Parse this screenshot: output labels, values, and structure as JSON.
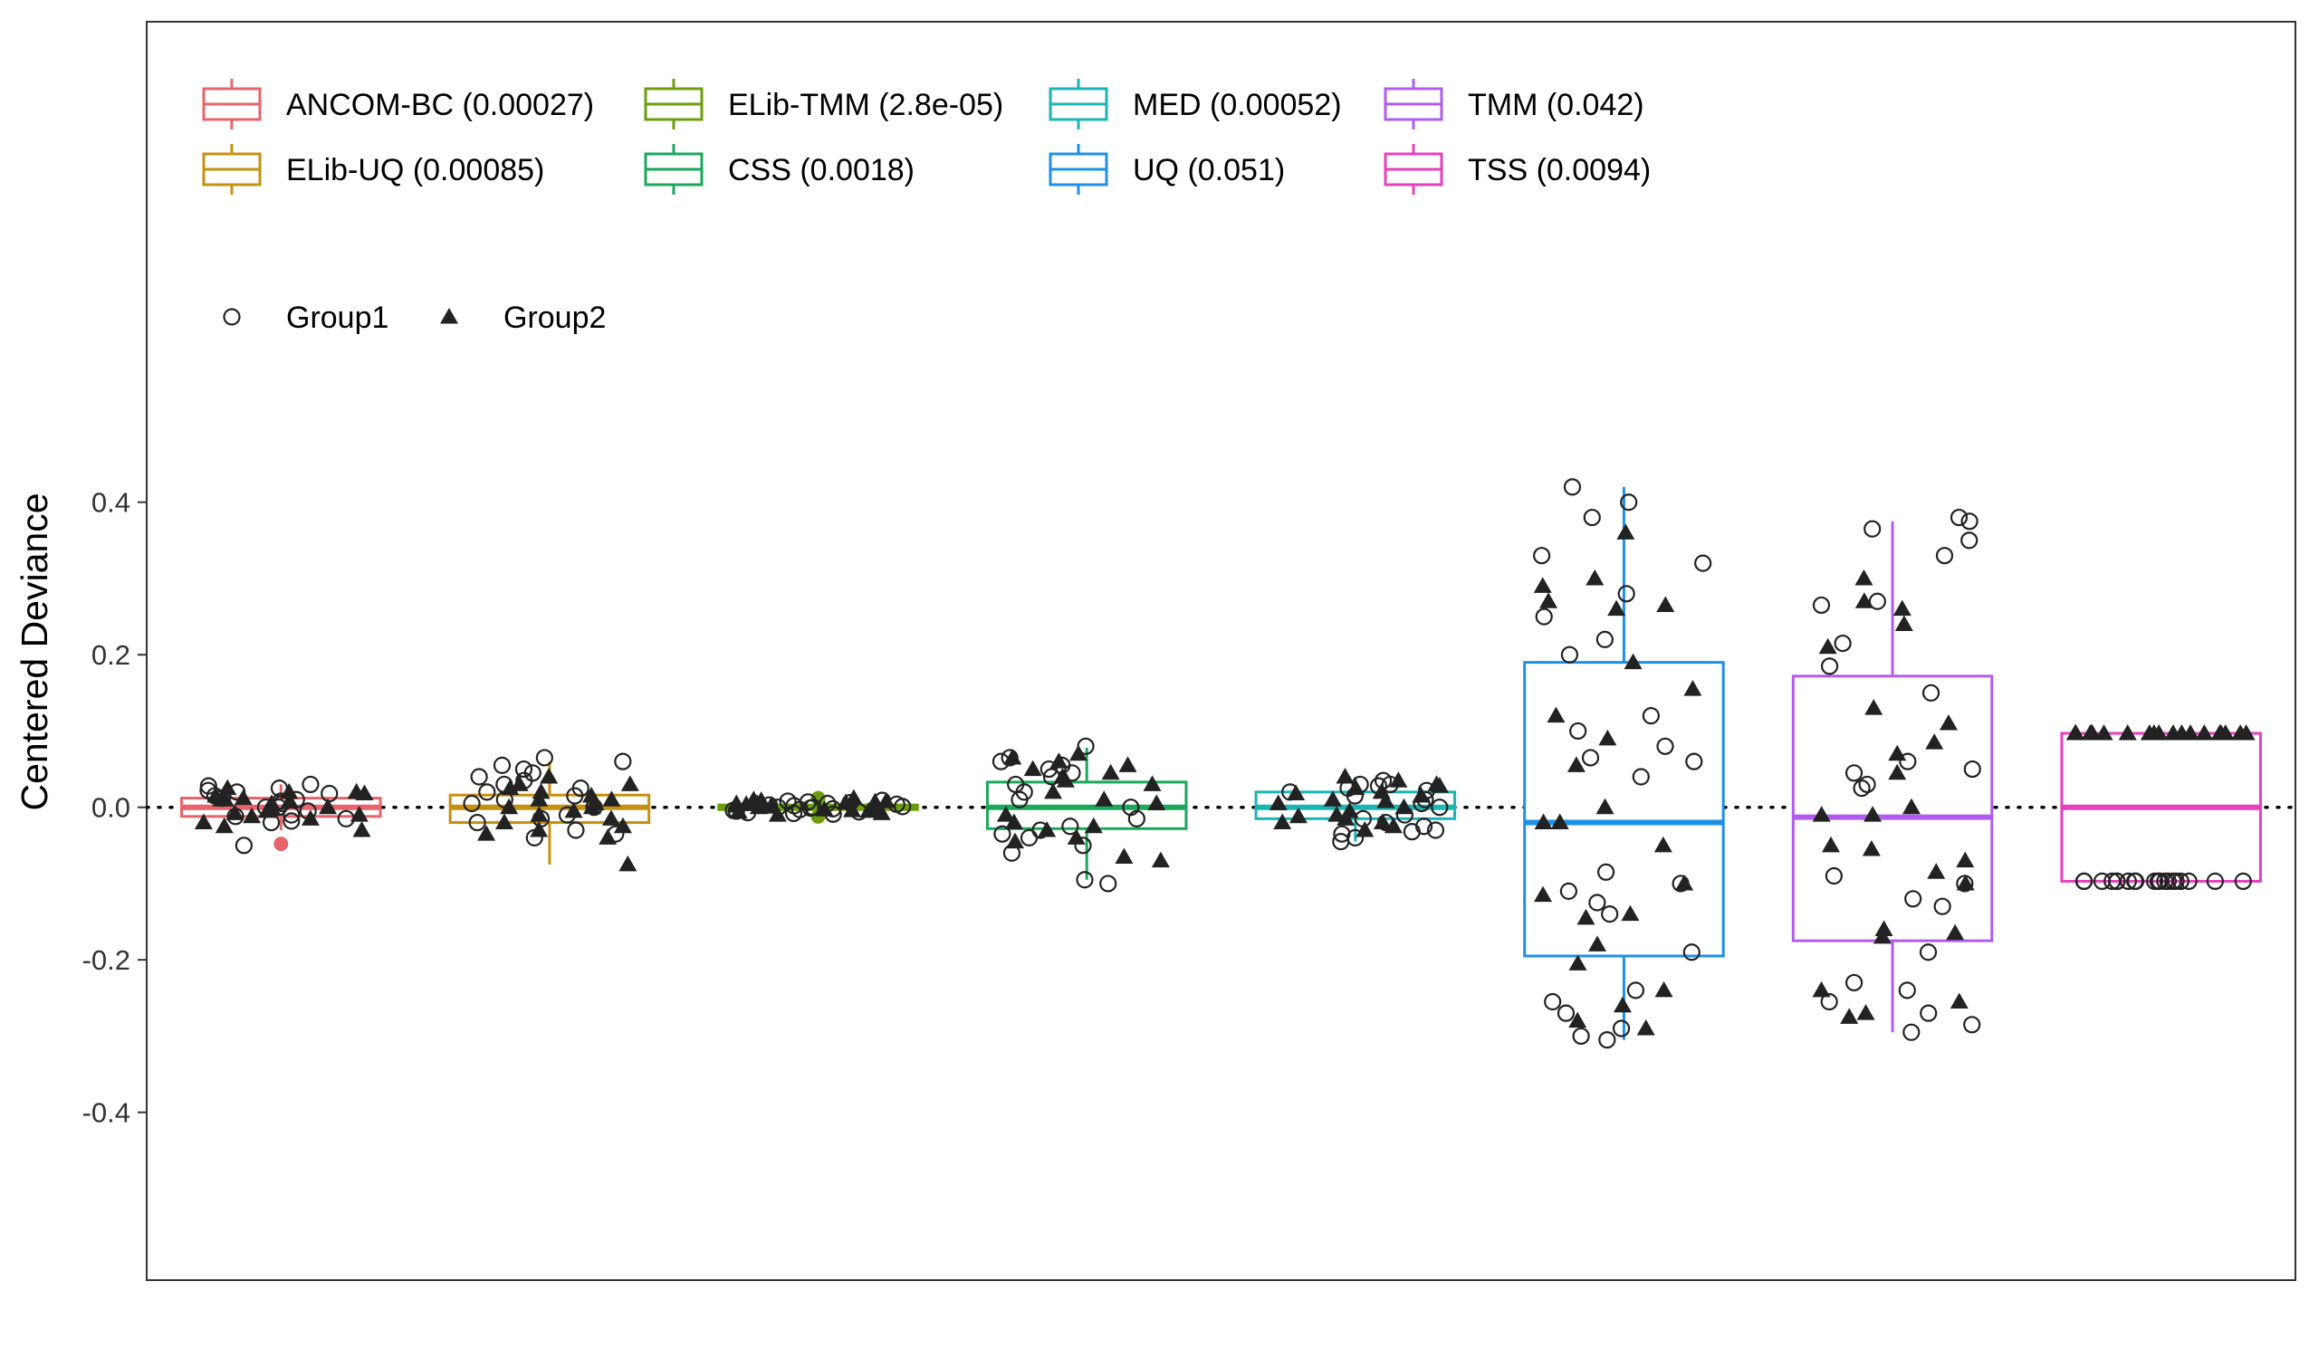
{
  "chart_data": {
    "type": "boxplot",
    "title": "",
    "xlabel": "",
    "ylabel": "Centered Deviance",
    "ylim": [
      -0.62,
      1.03
    ],
    "yticks": [
      -0.4,
      -0.2,
      0.0,
      0.2,
      0.4
    ],
    "ytick_labels": [
      "-0.4",
      "-0.2",
      "0.0",
      "0.2",
      "0.4"
    ],
    "reference_line": {
      "y": 0,
      "style": "dotted",
      "color": "#000000"
    },
    "grid": false,
    "legend_placement": "top-left",
    "methods": [
      {
        "name": "ANCOM-BC",
        "legend_label": "ANCOM-BC (0.00027)",
        "color": "#E8636A",
        "q1": -0.012,
        "median": 0.0,
        "q3": 0.012,
        "whisker_low": -0.03,
        "whisker_high": 0.03,
        "outliers": [
          -0.048
        ],
        "group1_points": [
          0.025,
          -0.01,
          0.015,
          0.02,
          -0.02,
          0.005,
          0.028,
          -0.015,
          0.01,
          0.0,
          -0.05,
          0.018,
          -0.005,
          0.022,
          0.008,
          -0.012,
          0.03,
          0.012,
          -0.018,
          0.0
        ],
        "group2_points": [
          0.01,
          -0.02,
          0.02,
          -0.03,
          0.015,
          0.0,
          -0.01,
          0.025,
          -0.005,
          0.008,
          -0.015,
          0.012,
          -0.025,
          0.018,
          0.005,
          -0.008,
          0.02,
          -0.012,
          0.01,
          0.0
        ]
      },
      {
        "name": "ELib-UQ",
        "legend_label": "ELib-UQ (0.00085)",
        "color": "#C7900E",
        "q1": -0.02,
        "median": 0.0,
        "q3": 0.016,
        "whisker_low": -0.075,
        "whisker_high": 0.06,
        "outliers": [],
        "group1_points": [
          0.035,
          0.05,
          -0.02,
          0.06,
          0.01,
          -0.035,
          0.065,
          0.03,
          -0.01,
          0.045,
          0.0,
          -0.03,
          0.02,
          0.055,
          -0.015,
          0.04,
          0.005,
          -0.04,
          0.025,
          0.015
        ],
        "group2_points": [
          -0.075,
          0.03,
          -0.03,
          0.04,
          0.01,
          -0.04,
          0.02,
          -0.01,
          0.0,
          -0.02,
          0.015,
          -0.035,
          0.025,
          0.005,
          -0.015,
          0.03,
          -0.025,
          0.01,
          0.0,
          -0.005
        ]
      },
      {
        "name": "ELib-TMM",
        "legend_label": "ELib-TMM (2.8e-05)",
        "color": "#6B9E0D",
        "q1": -0.003,
        "median": 0.0,
        "q3": 0.003,
        "whisker_low": -0.01,
        "whisker_high": 0.012,
        "outliers": [
          -0.012,
          0.012
        ],
        "group1_points": [
          0.005,
          -0.005,
          0.008,
          -0.008,
          0.003,
          -0.003,
          0.006,
          -0.006,
          0.0,
          0.004,
          -0.004,
          0.002,
          -0.002,
          0.007,
          -0.007,
          0.001,
          -0.001,
          0.009,
          -0.009,
          0.0
        ],
        "group2_points": [
          0.01,
          -0.005,
          0.008,
          -0.01,
          0.005,
          0.0,
          0.012,
          -0.004,
          0.006,
          -0.008,
          0.003,
          -0.002,
          0.009,
          -0.006,
          0.004,
          0.002,
          -0.003,
          0.007,
          0.001,
          0.005
        ]
      },
      {
        "name": "CSS",
        "legend_label": "CSS (0.0018)",
        "color": "#1AA85A",
        "q1": -0.028,
        "median": 0.0,
        "q3": 0.033,
        "whisker_low": -0.095,
        "whisker_high": 0.078,
        "outliers": [],
        "group1_points": [
          0.08,
          0.065,
          0.05,
          -0.095,
          -0.06,
          0.055,
          -0.03,
          0.04,
          -0.015,
          0.02,
          -0.04,
          0.06,
          -0.1,
          0.03,
          -0.025,
          0.01,
          -0.05,
          0.045,
          -0.035,
          0.0
        ],
        "group2_points": [
          0.07,
          0.055,
          0.06,
          -0.07,
          -0.065,
          0.045,
          -0.03,
          0.04,
          -0.02,
          0.03,
          -0.045,
          0.065,
          0.05,
          0.02,
          -0.01,
          0.01,
          -0.04,
          0.035,
          -0.025,
          0.005
        ]
      },
      {
        "name": "MED",
        "legend_label": "MED (0.00052)",
        "color": "#1BB5B3",
        "q1": -0.015,
        "median": 0.0,
        "q3": 0.02,
        "whisker_low": -0.045,
        "whisker_high": 0.04,
        "outliers": [],
        "group1_points": [
          0.03,
          -0.035,
          0.02,
          -0.025,
          0.035,
          -0.04,
          0.01,
          -0.02,
          0.025,
          -0.03,
          0.005,
          -0.045,
          0.015,
          0.03,
          -0.01,
          0.022,
          -0.015,
          0.0,
          0.028,
          -0.032
        ],
        "group2_points": [
          0.04,
          -0.02,
          0.03,
          -0.03,
          0.02,
          -0.01,
          0.035,
          0.0,
          0.025,
          -0.015,
          0.015,
          -0.025,
          0.005,
          0.01,
          -0.005,
          0.028,
          -0.02,
          0.018,
          0.008,
          -0.012
        ]
      },
      {
        "name": "UQ",
        "legend_label": "UQ (0.051)",
        "color": "#1E90E8",
        "q1": -0.195,
        "median": -0.02,
        "q3": 0.19,
        "whisker_low": -0.305,
        "whisker_high": 0.42,
        "outliers": [],
        "group1_points": [
          0.42,
          0.4,
          0.38,
          0.33,
          0.32,
          0.28,
          0.25,
          0.22,
          0.2,
          0.12,
          0.1,
          0.08,
          0.065,
          0.06,
          0.04,
          -0.085,
          -0.1,
          -0.11,
          -0.125,
          -0.14,
          -0.19,
          -0.24,
          -0.255,
          -0.27,
          -0.29,
          -0.3,
          -0.305
        ],
        "group2_points": [
          0.36,
          0.3,
          0.29,
          0.27,
          0.265,
          0.26,
          0.19,
          0.155,
          0.12,
          0.09,
          0.055,
          0.0,
          -0.02,
          -0.02,
          -0.05,
          -0.1,
          -0.115,
          -0.14,
          -0.145,
          -0.18,
          -0.205,
          -0.24,
          -0.26,
          -0.28,
          -0.29
        ]
      },
      {
        "name": "TMM",
        "legend_label": "TMM (0.042)",
        "color": "#B25BEE",
        "q1": -0.175,
        "median": -0.013,
        "q3": 0.172,
        "whisker_low": -0.295,
        "whisker_high": 0.375,
        "outliers": [],
        "group1_points": [
          0.38,
          0.375,
          0.365,
          0.35,
          0.33,
          0.27,
          0.265,
          0.215,
          0.185,
          0.15,
          0.06,
          0.05,
          0.045,
          0.03,
          0.025,
          -0.09,
          -0.1,
          -0.12,
          -0.13,
          -0.19,
          -0.23,
          -0.24,
          -0.255,
          -0.27,
          -0.285,
          -0.295
        ],
        "group2_points": [
          0.3,
          0.27,
          0.26,
          0.24,
          0.21,
          0.13,
          0.11,
          0.085,
          0.07,
          0.045,
          0.0,
          -0.01,
          -0.01,
          -0.05,
          -0.055,
          -0.07,
          -0.085,
          -0.1,
          -0.16,
          -0.165,
          -0.17,
          -0.24,
          -0.255,
          -0.27,
          -0.275
        ]
      },
      {
        "name": "TSS",
        "legend_label": "TSS (0.0094)",
        "color": "#E83FBE",
        "q1": -0.097,
        "median": 0.0,
        "q3": 0.097,
        "whisker_low": -0.097,
        "whisker_high": 0.097,
        "outliers": [],
        "group1_points": [
          -0.097,
          -0.097,
          -0.097,
          -0.097,
          -0.097,
          -0.097,
          -0.097,
          -0.097,
          -0.097,
          -0.097,
          -0.097,
          -0.097,
          -0.097,
          -0.097,
          -0.097,
          -0.097,
          -0.097,
          -0.097,
          -0.097,
          -0.097
        ],
        "group2_points": [
          0.097,
          0.097,
          0.097,
          0.097,
          0.097,
          0.097,
          0.097,
          0.097,
          0.097,
          0.097,
          0.097,
          0.097,
          0.097,
          0.097,
          0.097,
          0.097,
          0.097,
          0.097,
          0.097,
          0.097
        ]
      }
    ],
    "shape_legend": [
      {
        "label": "Group1",
        "shape": "open-circle"
      },
      {
        "label": "Group2",
        "shape": "filled-triangle"
      }
    ]
  }
}
